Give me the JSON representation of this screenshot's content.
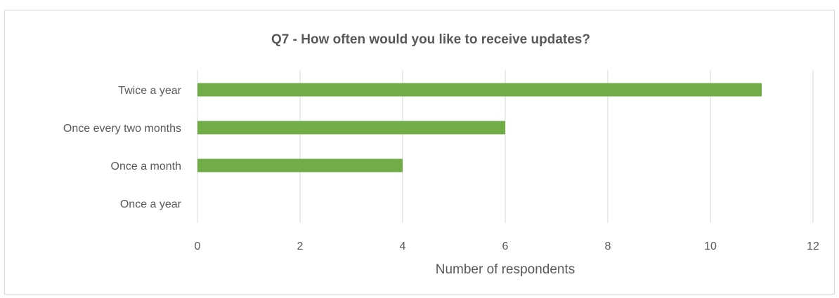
{
  "chart_data": {
    "type": "bar",
    "orientation": "horizontal",
    "title": "Q7 - How often would you like to receive updates?",
    "xlabel": "Number of respondents",
    "ylabel": "",
    "categories": [
      "Twice a year",
      "Once every two months",
      "Once a month",
      "Once a year"
    ],
    "values": [
      11,
      6,
      4,
      0
    ],
    "xlim": [
      0,
      12
    ],
    "xticks": [
      "0",
      "2",
      "4",
      "6",
      "8",
      "10",
      "12"
    ],
    "grid": true,
    "legend": "none",
    "bar_color": "#70ad47"
  }
}
